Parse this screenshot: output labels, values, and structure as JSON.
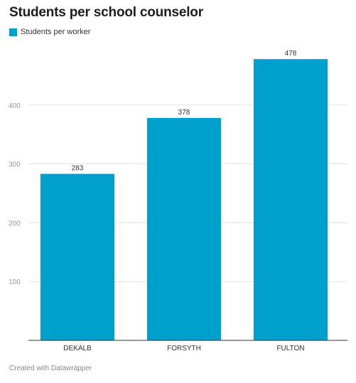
{
  "chart_data": {
    "type": "bar",
    "title": "Students per school counselor",
    "categories": [
      "DEKALB",
      "FORSYTH",
      "FULTON"
    ],
    "series": [
      {
        "name": "Students per worker",
        "values": [
          283,
          378,
          478
        ],
        "color": "#00a0cc"
      }
    ],
    "value_labels": [
      "283",
      "378",
      "478"
    ],
    "ylim": [
      0,
      500
    ],
    "y_ticks": [
      100,
      200,
      300,
      400
    ],
    "y_tick_labels": [
      "100",
      "200",
      "300",
      "400"
    ],
    "grid": true,
    "legend_position": "top-left"
  },
  "footer": {
    "credit": "Created with Datawrapper"
  },
  "colors": {
    "bar": "#00a0cc",
    "gridline": "#e3e3e3",
    "baseline": "#333333",
    "tick_label": "#999999"
  }
}
